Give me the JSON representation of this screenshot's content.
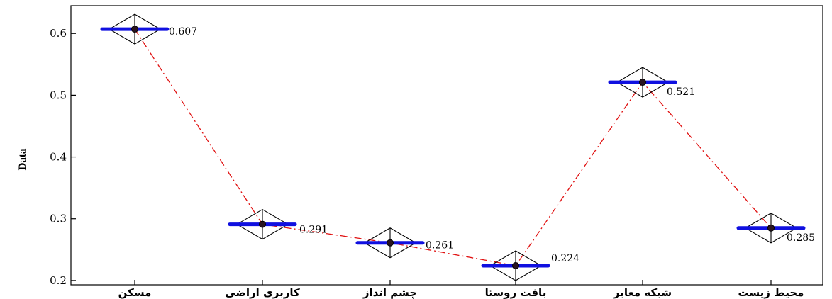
{
  "chart_data": {
    "type": "line",
    "categories": [
      "مسکن",
      "کاربری اراضی",
      "چشم انداز",
      "بافت روستا",
      "شبکه معابر",
      "محیط زیست"
    ],
    "values": [
      0.607,
      0.291,
      0.261,
      0.224,
      0.521,
      0.285
    ],
    "data_labels": [
      "0.607",
      "0.291",
      "0.261",
      "0.224",
      "0.521",
      "0.285"
    ],
    "ylabel": "Data",
    "xlabel": "",
    "yticks": [
      0.2,
      0.3,
      0.4,
      0.5,
      0.6
    ],
    "ytick_labels": [
      "0.2",
      "0.3",
      "0.4",
      "0.5",
      "0.6"
    ],
    "ylim": [
      0.193,
      0.645
    ],
    "grid": false,
    "line_color": "#e01010",
    "line_style": "dash-dot",
    "marker_bar_color": "#1010e0",
    "marker_color": "#000000"
  }
}
